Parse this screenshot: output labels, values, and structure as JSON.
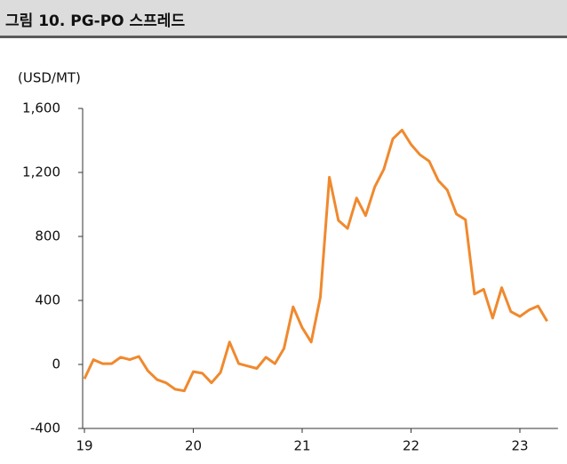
{
  "chart_data": {
    "type": "line",
    "title": "그림 10. PG-PO 스프레드",
    "y_label": "(USD/MT)",
    "x": [
      19,
      19.083,
      19.167,
      19.25,
      19.333,
      19.417,
      19.5,
      19.583,
      19.667,
      19.75,
      19.833,
      19.917,
      20,
      20.083,
      20.167,
      20.25,
      20.333,
      20.417,
      20.5,
      20.583,
      20.667,
      20.75,
      20.833,
      20.917,
      21,
      21.083,
      21.167,
      21.25,
      21.333,
      21.417,
      21.5,
      21.583,
      21.667,
      21.75,
      21.833,
      21.917,
      22,
      22.083,
      22.167,
      22.25,
      22.333,
      22.417,
      22.5,
      22.583,
      22.667,
      22.75,
      22.833,
      22.917,
      23,
      23.083,
      23.167,
      23.25
    ],
    "series": [
      {
        "name": "PG-PO",
        "color": "#f0892e",
        "values": [
          -90,
          30,
          5,
          5,
          45,
          30,
          50,
          -40,
          -95,
          -115,
          -155,
          -165,
          -45,
          -55,
          -115,
          -50,
          140,
          5,
          -10,
          -25,
          45,
          5,
          100,
          360,
          230,
          140,
          420,
          1170,
          900,
          850,
          1040,
          930,
          1110,
          1220,
          1410,
          1465,
          1375,
          1310,
          1270,
          1150,
          1090,
          940,
          905,
          440,
          470,
          290,
          480,
          330,
          300,
          340,
          365,
          270
        ]
      }
    ],
    "xlim": [
      19,
      23.35
    ],
    "xticks": [
      19,
      20,
      21,
      22,
      23
    ],
    "ylim": [
      -400,
      1600
    ],
    "yticks": [
      -400,
      0,
      400,
      800,
      {
        "value": 1200,
        "label": "1,200"
      },
      {
        "value": 1600,
        "label": "1,600"
      }
    ]
  }
}
